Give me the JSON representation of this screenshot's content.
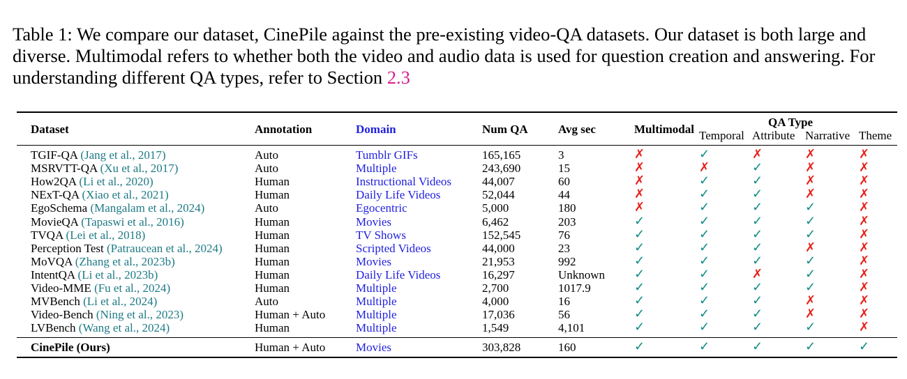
{
  "caption": {
    "text": "Table 1: We compare our dataset, CinePile against the pre-existing video-QA datasets. Our dataset is both large and diverse. Multimodal refers to whether both the video and audio data is used for question creation and answering. For understanding different QA types, refer to Section ",
    "ref": "2.3"
  },
  "table": {
    "headers": {
      "dataset": "Dataset",
      "annotation": "Annotation",
      "domain": "Domain",
      "num_qa": "Num QA",
      "avg_sec": "Avg sec",
      "multimodal": "Multimodal",
      "qa_type": "QA Type",
      "temporal": "Temporal",
      "attribute": "Attribute",
      "narrative": "Narrative",
      "theme": "Theme"
    },
    "check": "✓",
    "cross": "✗",
    "rows": [
      {
        "name": "TGIF-QA ",
        "cite": "(Jang et al., 2017)",
        "annotation": "Auto",
        "domain": "Tumblr GIFs",
        "num_qa": "165,165",
        "avg_sec": "3",
        "flags": [
          0,
          1,
          0,
          0,
          0
        ]
      },
      {
        "name": "MSRVTT-QA ",
        "cite": "(Xu et al., 2017)",
        "annotation": "Auto",
        "domain": "Multiple",
        "num_qa": "243,690",
        "avg_sec": "15",
        "flags": [
          0,
          0,
          1,
          0,
          0
        ]
      },
      {
        "name": "How2QA ",
        "cite": "(Li et al., 2020)",
        "annotation": "Human",
        "domain": "Instructional Videos",
        "num_qa": "44,007",
        "avg_sec": "60",
        "flags": [
          0,
          1,
          1,
          0,
          0
        ]
      },
      {
        "name": "NExT-QA ",
        "cite": "(Xiao et al., 2021)",
        "annotation": "Human",
        "domain": "Daily Life Videos",
        "num_qa": "52,044",
        "avg_sec": "44",
        "flags": [
          0,
          1,
          1,
          0,
          0
        ]
      },
      {
        "name": "EgoSchema ",
        "cite": "(Mangalam et al., 2024)",
        "annotation": "Auto",
        "domain": "Egocentric",
        "num_qa": "5,000",
        "avg_sec": "180",
        "flags": [
          0,
          1,
          1,
          1,
          0
        ]
      },
      {
        "name": "MovieQA ",
        "cite": "(Tapaswi et al., 2016)",
        "annotation": "Human",
        "domain": "Movies",
        "num_qa": "6,462",
        "avg_sec": "203",
        "flags": [
          1,
          1,
          1,
          1,
          0
        ]
      },
      {
        "name": "TVQA ",
        "cite": "(Lei et al., 2018)",
        "annotation": "Human",
        "domain": "TV Shows",
        "num_qa": "152,545",
        "avg_sec": "76",
        "flags": [
          1,
          1,
          1,
          1,
          0
        ]
      },
      {
        "name": "Perception Test ",
        "cite": "(Patraucean et al., 2024)",
        "annotation": "Human",
        "domain": "Scripted Videos",
        "num_qa": "44,000",
        "avg_sec": "23",
        "flags": [
          1,
          1,
          1,
          0,
          0
        ]
      },
      {
        "name": "MoVQA ",
        "cite": "(Zhang et al., 2023b)",
        "annotation": "Human",
        "domain": "Movies",
        "num_qa": "21,953",
        "avg_sec": "992",
        "flags": [
          1,
          1,
          1,
          1,
          0
        ]
      },
      {
        "name": "IntentQA ",
        "cite": "(Li et al., 2023b)",
        "annotation": "Human",
        "domain": "Daily Life Videos",
        "num_qa": "16,297",
        "avg_sec": "Unknown",
        "flags": [
          1,
          1,
          0,
          1,
          0
        ]
      },
      {
        "name": "Video-MME ",
        "cite": "(Fu et al., 2024)",
        "annotation": "Human",
        "domain": "Multiple",
        "num_qa": "2,700",
        "avg_sec": "1017.9",
        "flags": [
          1,
          1,
          1,
          1,
          0
        ]
      },
      {
        "name": "MVBench ",
        "cite": "(Li et al., 2024)",
        "annotation": "Auto",
        "domain": "Multiple",
        "num_qa": "4,000",
        "avg_sec": "16",
        "flags": [
          1,
          1,
          1,
          0,
          0
        ]
      },
      {
        "name": "Video-Bench ",
        "cite": "(Ning et al., 2023)",
        "annotation": "Human + Auto",
        "domain": "Multiple",
        "num_qa": "17,036",
        "avg_sec": "56",
        "flags": [
          1,
          1,
          1,
          0,
          0
        ]
      },
      {
        "name": "LVBench ",
        "cite": "(Wang et al., 2024)",
        "annotation": "Human",
        "domain": "Multiple",
        "num_qa": "1,549",
        "avg_sec": "4,101",
        "flags": [
          1,
          1,
          1,
          1,
          0
        ]
      }
    ],
    "ours": {
      "name": "CinePile (Ours)",
      "annotation": "Human + Auto",
      "domain": "Movies",
      "num_qa": "303,828",
      "avg_sec": "160",
      "flags": [
        1,
        1,
        1,
        1,
        1
      ]
    }
  }
}
